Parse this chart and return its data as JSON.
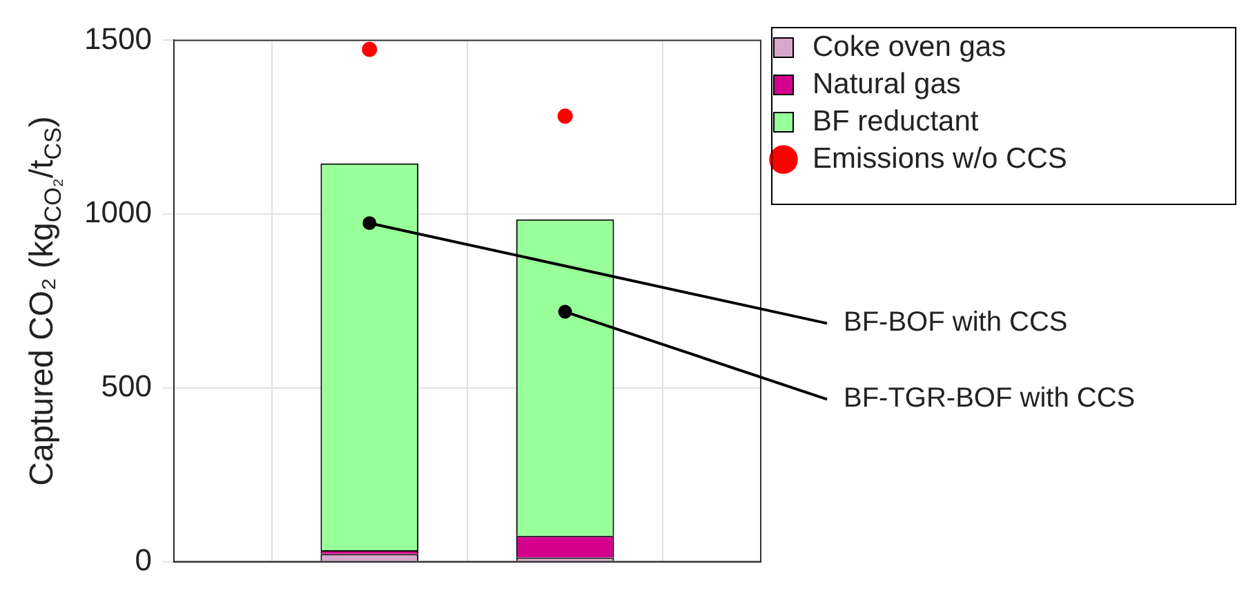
{
  "chart_data": {
    "type": "bar",
    "stacked": true,
    "ylabel": "Captured CO₂ (kg$_{CO₂}$/t$_{CS}$)",
    "categories": [
      null,
      null
    ],
    "ylim": [
      0,
      1500
    ],
    "yticks": [
      0,
      500,
      1000,
      1500
    ],
    "tick_labels": "y",
    "grid": true,
    "legend": "top right",
    "series": [
      {
        "name": "Coke oven gas",
        "color": "#d8a8cc",
        "values": [
          22,
          12
        ]
      },
      {
        "name": "Natural gas",
        "color": "#d6008f",
        "values": [
          11,
          62
        ]
      },
      {
        "name": "BF reductant",
        "color": "#99ff99",
        "values": [
          1113,
          911
        ]
      },
      {
        "name": "Emissions w/o CCS",
        "type": "scatter",
        "marker": "circle",
        "color": "#ff0000",
        "values": [
          1474,
          1282
        ]
      }
    ],
    "annotations": [
      "BF-BOF with CCS",
      "BF-TGR-BOF with CCS"
    ]
  }
}
